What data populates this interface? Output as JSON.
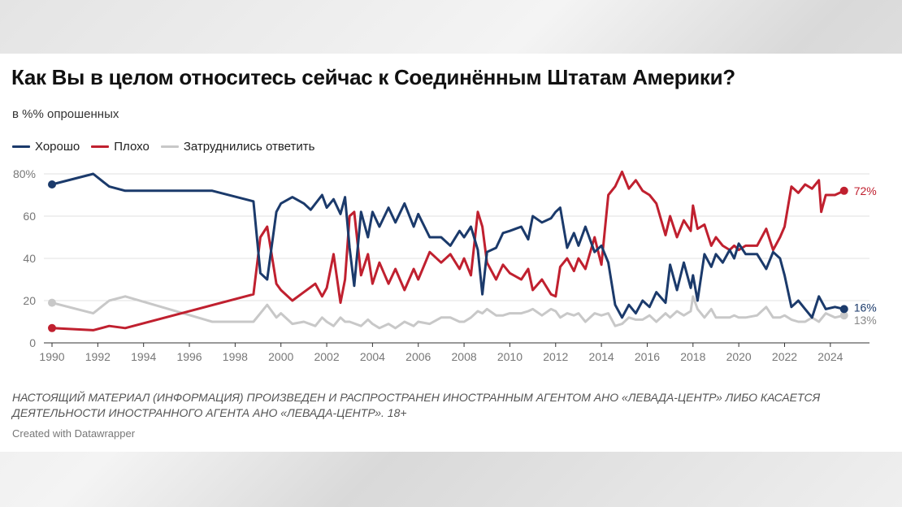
{
  "header": {
    "title": "Как Вы в целом относитесь сейчас к Соединённым Штатам Америки?",
    "subtitle": "в %% опрошенных"
  },
  "footer": {
    "disclaimer": "НАСТОЯЩИЙ МАТЕРИАЛ (ИНФОРМАЦИЯ) ПРОИЗВЕДЕН И РАСПРОСТРАНЕН ИНОСТРАННЫМ АГЕНТОМ АНО «ЛЕВАДА-ЦЕНТР» ЛИБО КАСАЕТСЯ ДЕЯТЕЛЬНОСТИ ИНОСТРАННОГО АГЕНТА АНО «ЛЕВАДА-ЦЕНТР». 18+",
    "credit": "Created with Datawrapper"
  },
  "chart_data": {
    "type": "line",
    "xlim": [
      1990,
      2025
    ],
    "ylim": [
      0,
      80
    ],
    "x_ticks": [
      "1990",
      "1992",
      "1994",
      "1996",
      "1998",
      "2000",
      "2002",
      "2004",
      "2006",
      "2008",
      "2010",
      "2012",
      "2014",
      "2016",
      "2018",
      "2020",
      "2022",
      "2024"
    ],
    "y_ticks": [
      "0",
      "20",
      "40",
      "60",
      "80%"
    ],
    "grid": true,
    "legend": "top-left",
    "series": [
      {
        "name": "Хорошо",
        "color": "#1b3a6b",
        "end_label": "16%",
        "points": [
          [
            1990,
            75
          ],
          [
            1991.8,
            80
          ],
          [
            1992.5,
            74
          ],
          [
            1993.2,
            72
          ],
          [
            1997,
            72
          ],
          [
            1998.8,
            67
          ],
          [
            1999.1,
            33
          ],
          [
            1999.4,
            30
          ],
          [
            1999.8,
            62
          ],
          [
            2000,
            66
          ],
          [
            2000.5,
            69
          ],
          [
            2001,
            66
          ],
          [
            2001.3,
            63
          ],
          [
            2001.8,
            70
          ],
          [
            2002,
            64
          ],
          [
            2002.3,
            68
          ],
          [
            2002.6,
            61
          ],
          [
            2002.8,
            69
          ],
          [
            2003,
            45
          ],
          [
            2003.2,
            27
          ],
          [
            2003.5,
            62
          ],
          [
            2003.8,
            50
          ],
          [
            2004,
            62
          ],
          [
            2004.3,
            55
          ],
          [
            2004.7,
            64
          ],
          [
            2005,
            57
          ],
          [
            2005.4,
            66
          ],
          [
            2005.8,
            55
          ],
          [
            2006,
            61
          ],
          [
            2006.5,
            50
          ],
          [
            2007,
            50
          ],
          [
            2007.4,
            46
          ],
          [
            2007.8,
            53
          ],
          [
            2008,
            50
          ],
          [
            2008.3,
            55
          ],
          [
            2008.6,
            44
          ],
          [
            2008.8,
            23
          ],
          [
            2009,
            43
          ],
          [
            2009.4,
            45
          ],
          [
            2009.7,
            52
          ],
          [
            2010,
            53
          ],
          [
            2010.5,
            55
          ],
          [
            2010.8,
            49
          ],
          [
            2011,
            60
          ],
          [
            2011.4,
            57
          ],
          [
            2011.8,
            59
          ],
          [
            2012,
            62
          ],
          [
            2012.2,
            64
          ],
          [
            2012.5,
            45
          ],
          [
            2012.8,
            52
          ],
          [
            2013,
            46
          ],
          [
            2013.3,
            55
          ],
          [
            2013.7,
            43
          ],
          [
            2014,
            46
          ],
          [
            2014.3,
            38
          ],
          [
            2014.6,
            18
          ],
          [
            2014.9,
            12
          ],
          [
            2015.2,
            18
          ],
          [
            2015.5,
            14
          ],
          [
            2015.8,
            20
          ],
          [
            2016.1,
            17
          ],
          [
            2016.4,
            24
          ],
          [
            2016.8,
            19
          ],
          [
            2017,
            37
          ],
          [
            2017.3,
            25
          ],
          [
            2017.6,
            38
          ],
          [
            2017.9,
            26
          ],
          [
            2018,
            32
          ],
          [
            2018.2,
            20
          ],
          [
            2018.5,
            42
          ],
          [
            2018.8,
            36
          ],
          [
            2019,
            42
          ],
          [
            2019.3,
            38
          ],
          [
            2019.6,
            44
          ],
          [
            2019.8,
            40
          ],
          [
            2020,
            47
          ],
          [
            2020.3,
            42
          ],
          [
            2020.8,
            42
          ],
          [
            2021.2,
            35
          ],
          [
            2021.5,
            43
          ],
          [
            2021.8,
            40
          ],
          [
            2022,
            32
          ],
          [
            2022.3,
            17
          ],
          [
            2022.6,
            20
          ],
          [
            2022.9,
            16
          ],
          [
            2023.2,
            12
          ],
          [
            2023.5,
            22
          ],
          [
            2023.8,
            16
          ],
          [
            2024.2,
            17
          ],
          [
            2024.6,
            16
          ]
        ]
      },
      {
        "name": "Плохо",
        "color": "#c0202f",
        "end_label": "72%",
        "points": [
          [
            1990,
            7
          ],
          [
            1991.8,
            6
          ],
          [
            1992.5,
            8
          ],
          [
            1993.2,
            7
          ],
          [
            1998.8,
            23
          ],
          [
            1999.1,
            50
          ],
          [
            1999.4,
            55
          ],
          [
            1999.8,
            28
          ],
          [
            2000,
            25
          ],
          [
            2000.5,
            20
          ],
          [
            2001,
            24
          ],
          [
            2001.5,
            28
          ],
          [
            2001.8,
            22
          ],
          [
            2002,
            26
          ],
          [
            2002.3,
            42
          ],
          [
            2002.6,
            19
          ],
          [
            2002.8,
            30
          ],
          [
            2003,
            60
          ],
          [
            2003.2,
            62
          ],
          [
            2003.5,
            32
          ],
          [
            2003.8,
            42
          ],
          [
            2004,
            28
          ],
          [
            2004.3,
            38
          ],
          [
            2004.7,
            28
          ],
          [
            2005,
            35
          ],
          [
            2005.4,
            25
          ],
          [
            2005.8,
            35
          ],
          [
            2006,
            30
          ],
          [
            2006.5,
            43
          ],
          [
            2007,
            38
          ],
          [
            2007.4,
            42
          ],
          [
            2007.8,
            35
          ],
          [
            2008,
            40
          ],
          [
            2008.3,
            32
          ],
          [
            2008.6,
            62
          ],
          [
            2008.8,
            55
          ],
          [
            2009,
            38
          ],
          [
            2009.4,
            30
          ],
          [
            2009.7,
            37
          ],
          [
            2010,
            33
          ],
          [
            2010.5,
            30
          ],
          [
            2010.8,
            35
          ],
          [
            2011,
            25
          ],
          [
            2011.4,
            30
          ],
          [
            2011.8,
            23
          ],
          [
            2012,
            22
          ],
          [
            2012.2,
            36
          ],
          [
            2012.5,
            40
          ],
          [
            2012.8,
            34
          ],
          [
            2013,
            40
          ],
          [
            2013.3,
            35
          ],
          [
            2013.7,
            50
          ],
          [
            2014,
            37
          ],
          [
            2014.3,
            70
          ],
          [
            2014.6,
            74
          ],
          [
            2014.9,
            81
          ],
          [
            2015.2,
            73
          ],
          [
            2015.5,
            77
          ],
          [
            2015.8,
            72
          ],
          [
            2016.1,
            70
          ],
          [
            2016.4,
            66
          ],
          [
            2016.8,
            51
          ],
          [
            2017,
            60
          ],
          [
            2017.3,
            50
          ],
          [
            2017.6,
            58
          ],
          [
            2017.9,
            53
          ],
          [
            2018,
            65
          ],
          [
            2018.2,
            54
          ],
          [
            2018.5,
            56
          ],
          [
            2018.8,
            46
          ],
          [
            2019,
            50
          ],
          [
            2019.3,
            46
          ],
          [
            2019.6,
            44
          ],
          [
            2019.8,
            46
          ],
          [
            2020,
            44
          ],
          [
            2020.3,
            46
          ],
          [
            2020.8,
            46
          ],
          [
            2021.2,
            54
          ],
          [
            2021.5,
            44
          ],
          [
            2021.8,
            50
          ],
          [
            2022,
            55
          ],
          [
            2022.3,
            74
          ],
          [
            2022.6,
            71
          ],
          [
            2022.9,
            75
          ],
          [
            2023.2,
            73
          ],
          [
            2023.5,
            77
          ],
          [
            2023.6,
            62
          ],
          [
            2023.8,
            70
          ],
          [
            2024.2,
            70
          ],
          [
            2024.6,
            72
          ]
        ]
      },
      {
        "name": "Затруднились ответить",
        "color": "#c8c8c8",
        "end_label": "13%",
        "points": [
          [
            1990,
            19
          ],
          [
            1991.8,
            14
          ],
          [
            1992.5,
            20
          ],
          [
            1993.2,
            22
          ],
          [
            1997,
            10
          ],
          [
            1998.8,
            10
          ],
          [
            1999.1,
            14
          ],
          [
            1999.4,
            18
          ],
          [
            1999.8,
            12
          ],
          [
            2000,
            14
          ],
          [
            2000.5,
            9
          ],
          [
            2001,
            10
          ],
          [
            2001.5,
            8
          ],
          [
            2001.8,
            12
          ],
          [
            2002,
            10
          ],
          [
            2002.3,
            8
          ],
          [
            2002.6,
            12
          ],
          [
            2002.8,
            10
          ],
          [
            2003,
            10
          ],
          [
            2003.5,
            8
          ],
          [
            2003.8,
            11
          ],
          [
            2004,
            9
          ],
          [
            2004.3,
            7
          ],
          [
            2004.7,
            9
          ],
          [
            2005,
            7
          ],
          [
            2005.4,
            10
          ],
          [
            2005.8,
            8
          ],
          [
            2006,
            10
          ],
          [
            2006.5,
            9
          ],
          [
            2007,
            12
          ],
          [
            2007.4,
            12
          ],
          [
            2007.8,
            10
          ],
          [
            2008,
            10
          ],
          [
            2008.3,
            12
          ],
          [
            2008.6,
            15
          ],
          [
            2008.8,
            14
          ],
          [
            2009,
            16
          ],
          [
            2009.4,
            13
          ],
          [
            2009.7,
            13
          ],
          [
            2010,
            14
          ],
          [
            2010.5,
            14
          ],
          [
            2010.8,
            15
          ],
          [
            2011,
            16
          ],
          [
            2011.4,
            13
          ],
          [
            2011.8,
            16
          ],
          [
            2012,
            15
          ],
          [
            2012.2,
            12
          ],
          [
            2012.5,
            14
          ],
          [
            2012.8,
            13
          ],
          [
            2013,
            14
          ],
          [
            2013.3,
            10
          ],
          [
            2013.7,
            14
          ],
          [
            2014,
            13
          ],
          [
            2014.3,
            14
          ],
          [
            2014.6,
            8
          ],
          [
            2014.9,
            9
          ],
          [
            2015.2,
            12
          ],
          [
            2015.5,
            11
          ],
          [
            2015.8,
            11
          ],
          [
            2016.1,
            13
          ],
          [
            2016.4,
            10
          ],
          [
            2016.8,
            14
          ],
          [
            2017,
            12
          ],
          [
            2017.3,
            15
          ],
          [
            2017.6,
            13
          ],
          [
            2017.9,
            15
          ],
          [
            2018,
            22
          ],
          [
            2018.2,
            16
          ],
          [
            2018.5,
            12
          ],
          [
            2018.8,
            16
          ],
          [
            2019,
            12
          ],
          [
            2019.3,
            12
          ],
          [
            2019.6,
            12
          ],
          [
            2019.8,
            13
          ],
          [
            2020,
            12
          ],
          [
            2020.3,
            12
          ],
          [
            2020.8,
            13
          ],
          [
            2021.2,
            17
          ],
          [
            2021.5,
            12
          ],
          [
            2021.8,
            12
          ],
          [
            2022,
            13
          ],
          [
            2022.3,
            11
          ],
          [
            2022.6,
            10
          ],
          [
            2022.9,
            10
          ],
          [
            2023.2,
            12
          ],
          [
            2023.5,
            10
          ],
          [
            2023.8,
            14
          ],
          [
            2024.2,
            12
          ],
          [
            2024.6,
            13
          ]
        ]
      }
    ]
  }
}
